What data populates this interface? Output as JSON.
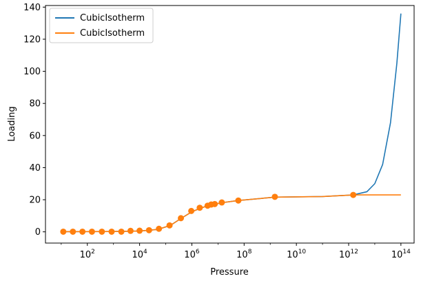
{
  "chart_data": {
    "type": "line",
    "xlabel": "Pressure",
    "ylabel": "Loading",
    "xscale": "log",
    "xlim": [
      2.5,
      320000000000000.0
    ],
    "ylim": [
      -7,
      141
    ],
    "legend_placement": "top-left",
    "grid": false,
    "x_ticks": [
      {
        "value": 100,
        "base": "10",
        "exp": "2"
      },
      {
        "value": 10000,
        "base": "10",
        "exp": "4"
      },
      {
        "value": 1000000,
        "base": "10",
        "exp": "6"
      },
      {
        "value": 100000000,
        "base": "10",
        "exp": "8"
      },
      {
        "value": 10000000000,
        "base": "10",
        "exp": "10"
      },
      {
        "value": 1000000000000,
        "base": "10",
        "exp": "12"
      },
      {
        "value": 100000000000000,
        "base": "10",
        "exp": "14"
      }
    ],
    "y_ticks": [
      0,
      20,
      40,
      60,
      80,
      100,
      120,
      140
    ],
    "series": [
      {
        "name": "CubicIsotherm",
        "color": "#1f77b4",
        "points": [
          [
            10,
            0.1
          ],
          [
            1000,
            0.2
          ],
          [
            10000,
            0.5
          ],
          [
            50000,
            1.5
          ],
          [
            150000,
            4
          ],
          [
            400000,
            8.5
          ],
          [
            1000000,
            12.5
          ],
          [
            2000000,
            14.5
          ],
          [
            4000000,
            16.3
          ],
          [
            7000000,
            17.1
          ],
          [
            15000000,
            18.2
          ],
          [
            60000000,
            19.5
          ],
          [
            1500000000,
            21.6
          ],
          [
            100000000000,
            22
          ],
          [
            1500000000000,
            23
          ],
          [
            5000000000000,
            25
          ],
          [
            10000000000000,
            30
          ],
          [
            20000000000000,
            42
          ],
          [
            40000000000000,
            68
          ],
          [
            70000000000000,
            105
          ],
          [
            100000000000000,
            136
          ]
        ]
      },
      {
        "name": "CubicIsotherm",
        "color": "#ff7f0e",
        "points": [
          [
            10,
            0.1
          ],
          [
            1000,
            0.2
          ],
          [
            10000,
            0.5
          ],
          [
            50000,
            1.5
          ],
          [
            150000,
            4
          ],
          [
            400000,
            8.5
          ],
          [
            1000000,
            12.5
          ],
          [
            2000000,
            14.5
          ],
          [
            4000000,
            16.3
          ],
          [
            7000000,
            17.1
          ],
          [
            15000000,
            18.2
          ],
          [
            60000000,
            19.5
          ],
          [
            1500000000,
            21.6
          ],
          [
            100000000000,
            22
          ],
          [
            1500000000000,
            23
          ],
          [
            100000000000000,
            23
          ]
        ]
      }
    ],
    "markers": {
      "color": "#ff7f0e",
      "points": [
        [
          12,
          0.1
        ],
        [
          28,
          0.1
        ],
        [
          65,
          0.1
        ],
        [
          150,
          0.1
        ],
        [
          360,
          0.1
        ],
        [
          850,
          0.1
        ],
        [
          2000,
          0.1
        ],
        [
          4500,
          0.6
        ],
        [
          10000,
          0.7
        ],
        [
          23000,
          1
        ],
        [
          55000,
          1.9
        ],
        [
          140000,
          4
        ],
        [
          380000,
          8.5
        ],
        [
          950000,
          13
        ],
        [
          2000000,
          15
        ],
        [
          4000000,
          16.3
        ],
        [
          5500000,
          17
        ],
        [
          7500000,
          17.3
        ],
        [
          14000000,
          18.3
        ],
        [
          60000000,
          19.5
        ],
        [
          1500000000,
          21.8
        ],
        [
          1500000000000,
          23
        ]
      ]
    }
  }
}
